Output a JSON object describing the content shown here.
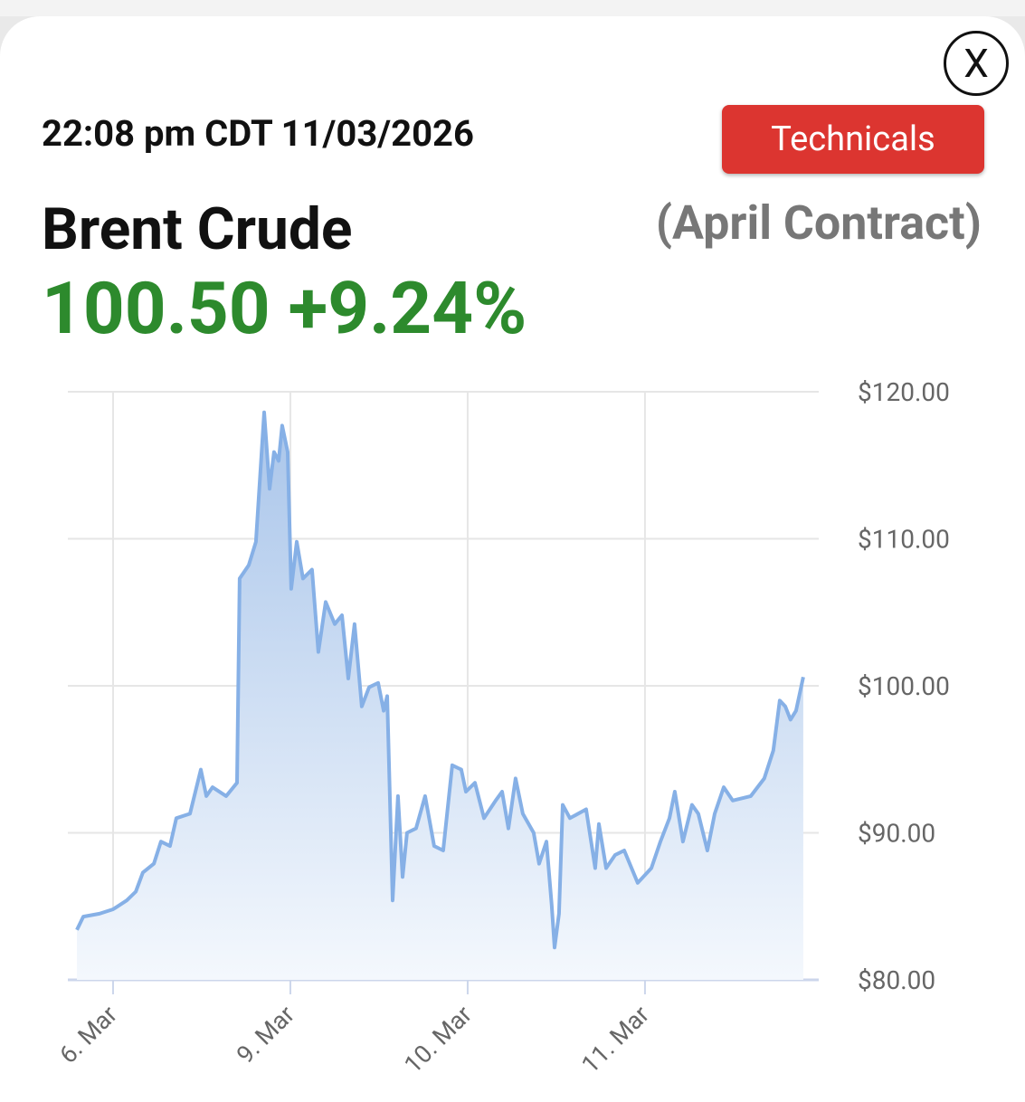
{
  "header": {
    "timestamp": "22:08 pm CDT 11/03/2026",
    "button": "Technicals",
    "close": "X",
    "instrument": "Brent Crude",
    "contract": "(April Contract)",
    "price": "100.50",
    "change": "+9.24%"
  },
  "chart_data": {
    "type": "line",
    "color": "#86b0e6",
    "grid": true,
    "x": [
      -0.204,
      -0.168,
      -0.077,
      0,
      0.077,
      0.128,
      0.168,
      0.23,
      0.27,
      0.321,
      0.357,
      0.434,
      0.495,
      0.526,
      0.561,
      0.638,
      0.699,
      0.714,
      0.765,
      0.806,
      0.852,
      0.883,
      0.908,
      0.934,
      0.954,
      0.985,
      1.005,
      1.036,
      1.071,
      1.122,
      1.158,
      1.199,
      1.25,
      1.291,
      1.327,
      1.362,
      1.403,
      1.444,
      1.495,
      1.526,
      1.546,
      1.577,
      1.607,
      1.633,
      1.658,
      1.709,
      1.76,
      1.811,
      1.862,
      1.913,
      1.964,
      1.99,
      2.041,
      2.092,
      2.158,
      2.194,
      2.23,
      2.27,
      2.311,
      2.372,
      2.403,
      2.444,
      2.474,
      2.49,
      2.515,
      2.536,
      2.577,
      2.668,
      2.719,
      2.74,
      2.781,
      2.832,
      2.883,
      2.959,
      3.036,
      3.087,
      3.138,
      3.168,
      3.214,
      3.265,
      3.301,
      3.352,
      3.393,
      3.444,
      3.495,
      3.597,
      3.673,
      3.724,
      3.76,
      3.791,
      3.821,
      3.852,
      3.893
    ],
    "values": [
      83.4,
      84.3,
      84.5,
      84.8,
      85.4,
      86.0,
      87.3,
      87.9,
      89.4,
      89.1,
      91.0,
      91.3,
      94.3,
      92.5,
      93.1,
      92.5,
      93.4,
      107.3,
      108.2,
      109.8,
      118.6,
      113.4,
      115.9,
      115.3,
      117.7,
      115.9,
      106.6,
      109.8,
      107.3,
      107.9,
      102.3,
      105.7,
      104.2,
      104.8,
      100.5,
      104.2,
      98.6,
      99.9,
      100.2,
      98.3,
      99.3,
      85.4,
      92.5,
      87.0,
      90.0,
      90.3,
      92.5,
      89.1,
      88.8,
      94.6,
      94.3,
      92.8,
      93.4,
      91.0,
      92.2,
      92.8,
      90.3,
      93.7,
      91.3,
      90.0,
      87.9,
      89.4,
      85.1,
      82.2,
      84.5,
      91.9,
      91.0,
      91.6,
      87.6,
      90.6,
      87.6,
      88.5,
      88.8,
      86.6,
      87.6,
      89.4,
      91.0,
      92.8,
      89.4,
      91.9,
      91.3,
      88.8,
      91.3,
      93.1,
      92.2,
      92.5,
      93.7,
      95.6,
      99.0,
      98.6,
      97.7,
      98.3,
      100.6
    ],
    "xlim": [
      -0.255,
      3.98
    ],
    "xticks": [
      {
        "value": 0,
        "label": "6. Mar"
      },
      {
        "value": 1,
        "label": "9. Mar"
      },
      {
        "value": 2,
        "label": "10. Mar"
      },
      {
        "value": 3,
        "label": "11. Mar"
      }
    ],
    "ylim": [
      80,
      120
    ],
    "yticks": [
      {
        "value": 80,
        "label": "$80.00"
      },
      {
        "value": 90,
        "label": "$90.00"
      },
      {
        "value": 100,
        "label": "$100.00"
      },
      {
        "value": 110,
        "label": "$110.00"
      },
      {
        "value": 120,
        "label": "$120.00"
      }
    ]
  }
}
